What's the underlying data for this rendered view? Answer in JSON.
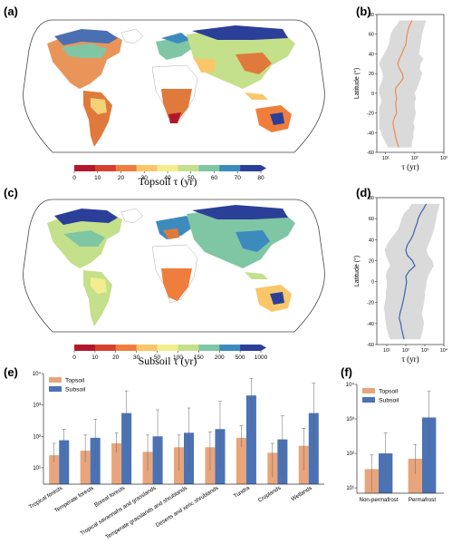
{
  "panels": {
    "a": "(a)",
    "b": "(b)",
    "c": "(c)",
    "d": "(d)",
    "e": "(e)",
    "f": "(f)"
  },
  "colors": {
    "topsoil": "#e8a57c",
    "subsoil": "#4a72b5",
    "profile_b": "#ee8a4e",
    "profile_d": "#3e64ad",
    "envelope": "#dadada"
  },
  "colorbar_a": {
    "label": "Topsoil τ (yr)",
    "ticks": [
      "0",
      "10",
      "20",
      "30",
      "40",
      "50",
      "60",
      "70",
      "80"
    ],
    "colors": [
      "#b2182b",
      "#d6402f",
      "#ef7e3d",
      "#f9c66a",
      "#f4ed8e",
      "#c4e08a",
      "#7fc6a5",
      "#3d8bbd",
      "#2c3f98"
    ]
  },
  "colorbar_c": {
    "label": "Subsoil τ (yr)",
    "ticks": [
      "0",
      "10",
      "20",
      "30",
      "50",
      "100",
      "150",
      "200",
      "500",
      "1000"
    ],
    "colors": [
      "#b2182b",
      "#d6402f",
      "#ef7e3d",
      "#f9c66a",
      "#f4ed8e",
      "#c4e08a",
      "#7fc6a5",
      "#3d8bbd",
      "#2c3f98"
    ]
  },
  "chart_data": [
    {
      "panel": "b",
      "type": "line",
      "xlabel": "τ (yr)",
      "ylabel": "Latitude (°)",
      "xscale": "log",
      "xlim": [
        5,
        1000
      ],
      "ylim": [
        -60,
        80
      ],
      "x_ticks": [
        "10¹",
        "10²",
        "10³"
      ],
      "y_ticks": [
        80,
        60,
        40,
        20,
        0,
        -20,
        -40,
        -60
      ],
      "series": [
        {
          "latitude": [
            74,
            70,
            65,
            60,
            55,
            50,
            45,
            40,
            35,
            30,
            25,
            20,
            15,
            10,
            5,
            0,
            -5,
            -10,
            -15,
            -20,
            -25,
            -30,
            -35,
            -40,
            -45,
            -50,
            -55
          ],
          "median": [
            80,
            70,
            60,
            55,
            52,
            50,
            42,
            36,
            30,
            26,
            30,
            38,
            40,
            30,
            22,
            22,
            24,
            22,
            23,
            24,
            20,
            18,
            19,
            21,
            22,
            25,
            28
          ],
          "lower": [
            30,
            25,
            18,
            15,
            14,
            13,
            11,
            9,
            7,
            6,
            7,
            8,
            8,
            7,
            6,
            6,
            7,
            7,
            6,
            6,
            6,
            6,
            6,
            7,
            8,
            10,
            12
          ],
          "upper": [
            250,
            220,
            200,
            180,
            170,
            160,
            150,
            140,
            200,
            160,
            150,
            180,
            160,
            140,
            120,
            100,
            110,
            100,
            100,
            110,
            100,
            90,
            100,
            90,
            90,
            80,
            80
          ]
        }
      ]
    },
    {
      "panel": "d",
      "type": "line",
      "xlabel": "τ (yr)",
      "ylabel": "Latitude (°)",
      "xscale": "log",
      "xlim": [
        3,
        10000
      ],
      "ylim": [
        -60,
        80
      ],
      "x_ticks": [
        "10¹",
        "10²",
        "10³",
        "10⁴"
      ],
      "y_ticks": [
        80,
        60,
        40,
        20,
        0,
        -20,
        -40,
        -60
      ],
      "series": [
        {
          "latitude": [
            74,
            70,
            65,
            60,
            55,
            50,
            45,
            40,
            35,
            30,
            25,
            20,
            15,
            10,
            5,
            0,
            -5,
            -10,
            -15,
            -20,
            -25,
            -30,
            -35,
            -40,
            -45,
            -50,
            -55
          ],
          "median": [
            1200,
            900,
            600,
            450,
            380,
            300,
            250,
            180,
            120,
            100,
            120,
            220,
            300,
            150,
            100,
            110,
            100,
            90,
            80,
            70,
            60,
            50,
            45,
            55,
            60,
            70,
            80
          ],
          "lower": [
            200,
            150,
            80,
            60,
            50,
            40,
            25,
            15,
            10,
            8,
            9,
            12,
            15,
            10,
            9,
            10,
            10,
            9,
            9,
            8,
            7,
            8,
            8,
            9,
            10,
            12,
            15
          ],
          "upper": [
            6000,
            5500,
            4500,
            4000,
            3500,
            3000,
            2500,
            2000,
            1500,
            1200,
            1500,
            2500,
            3000,
            2000,
            1500,
            1200,
            1200,
            1000,
            1000,
            900,
            800,
            700,
            800,
            900,
            800,
            700,
            600
          ]
        }
      ]
    },
    {
      "panel": "e",
      "type": "bar",
      "yscale": "log",
      "ylim": [
        3,
        10000
      ],
      "y_ticks": [
        "10¹",
        "10²",
        "10³",
        "10⁴"
      ],
      "legend": "top-left",
      "categories": [
        "Tropical forests",
        "Temperate forests",
        "Boreal forests",
        "Tropical savannahs and grasslands",
        "Temperate grasslands and shrublands",
        "Deserts and xeric shrublands",
        "Tundra",
        "Croplands",
        "Wetlands"
      ],
      "series": [
        {
          "name": "Topsoil",
          "values": [
            25,
            35,
            60,
            32,
            45,
            45,
            90,
            30,
            50
          ],
          "err_low": [
            15,
            15,
            30,
            8,
            8,
            8,
            45,
            5,
            8
          ],
          "err_high": [
            60,
            110,
            130,
            110,
            110,
            140,
            220,
            60,
            180
          ]
        },
        {
          "name": "Subsoil",
          "values": [
            75,
            90,
            550,
            100,
            130,
            170,
            2000,
            80,
            550
          ],
          "err_low": [
            20,
            10,
            60,
            8,
            8,
            10,
            150,
            5,
            15
          ],
          "err_high": [
            170,
            350,
            2800,
            700,
            800,
            1300,
            7000,
            450,
            5000
          ]
        }
      ]
    },
    {
      "panel": "f",
      "type": "bar",
      "yscale": "log",
      "ylim": [
        7,
        10000
      ],
      "y_ticks": [
        "10¹",
        "10²",
        "10³",
        "10⁴"
      ],
      "legend": "top-left",
      "categories": [
        "Non-permafrost",
        "Permafrost"
      ],
      "series": [
        {
          "name": "Topsoil",
          "values": [
            35,
            70
          ],
          "err_low": [
            8,
            25
          ],
          "err_high": [
            90,
            180
          ]
        },
        {
          "name": "Subsoil",
          "values": [
            100,
            1100
          ],
          "err_low": [
            15,
            90
          ],
          "err_high": [
            400,
            6500
          ]
        }
      ]
    }
  ]
}
